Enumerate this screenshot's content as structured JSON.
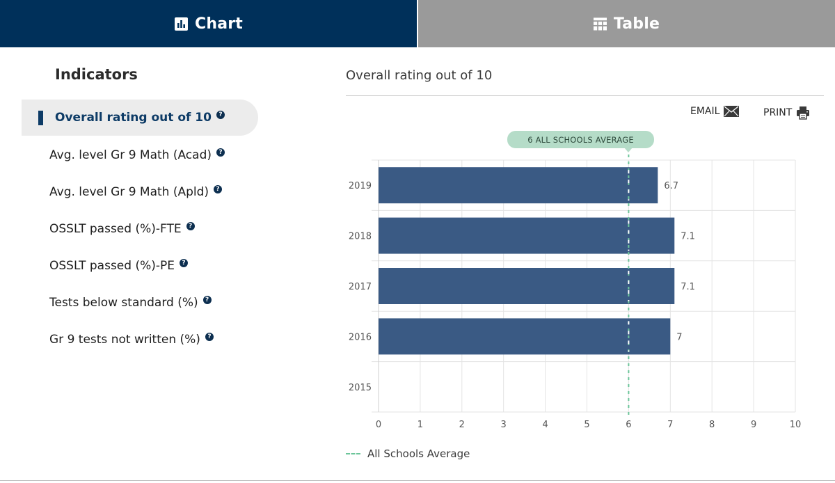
{
  "tabs": {
    "chart": {
      "label": "Chart",
      "icon": "bar-chart-icon"
    },
    "table": {
      "label": "Table",
      "icon": "table-icon"
    }
  },
  "indicators": {
    "title": "Indicators",
    "items": [
      {
        "label": "Overall rating out of 10",
        "active": true
      },
      {
        "label": "Avg. level Gr 9 Math (Acad)",
        "active": false
      },
      {
        "label": "Avg. level Gr 9 Math (Apld)",
        "active": false
      },
      {
        "label": "OSSLT passed (%)-FTE",
        "active": false
      },
      {
        "label": "OSSLT passed (%)-PE",
        "active": false
      },
      {
        "label": "Tests below standard (%)",
        "active": false
      },
      {
        "label": "Gr 9 tests not written (%)",
        "active": false
      }
    ],
    "help_glyph": "?"
  },
  "panel": {
    "title": "Overall rating out of 10",
    "email_label": "EMAIL",
    "print_label": "PRINT"
  },
  "avg_pill": "6 ALL SCHOOLS AVERAGE",
  "legend": {
    "label": "All Schools Average"
  },
  "colors": {
    "tab_active": "#00305a",
    "tab_inactive": "#9a9a9a",
    "bar": "#3a5a84",
    "average_line": "#6cc59a",
    "pill": "#b5dcc8"
  },
  "chart_data": {
    "type": "bar",
    "orientation": "horizontal",
    "categories": [
      "2019",
      "2018",
      "2017",
      "2016",
      "2015"
    ],
    "values": [
      6.7,
      7.1,
      7.1,
      7,
      null
    ],
    "data_labels": [
      "6.7",
      "7.1",
      "7.1",
      "7",
      ""
    ],
    "xlim": [
      0,
      10
    ],
    "xticks": [
      0,
      1,
      2,
      3,
      4,
      5,
      6,
      7,
      8,
      9,
      10
    ],
    "reference_line": {
      "value": 6,
      "label": "All Schools Average"
    },
    "grid": true,
    "legend_position": "bottom-left"
  }
}
